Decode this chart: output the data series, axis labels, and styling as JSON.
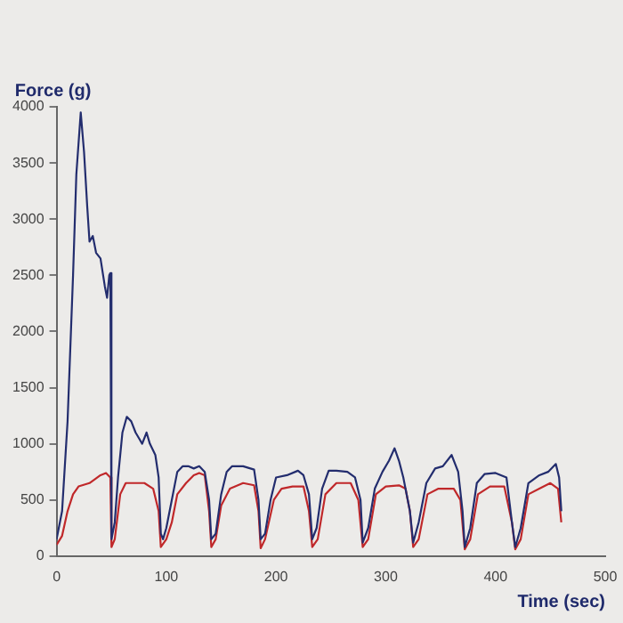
{
  "chart_data": {
    "type": "line",
    "xlabel": "Time (sec)",
    "ylabel": "Force (g)",
    "xlim": [
      0,
      500
    ],
    "xticks": [
      0,
      100,
      200,
      300,
      400,
      500
    ],
    "ylim": [
      0,
      4000
    ],
    "yticks": [
      0,
      500,
      1000,
      1500,
      2000,
      2500,
      3000,
      3500,
      4000
    ],
    "grid": false,
    "legend": false,
    "marker": "none",
    "line_style": "solid",
    "series": [
      {
        "color": "#232d6e",
        "x": [
          0,
          5,
          10,
          15,
          18,
          22,
          25,
          28,
          30,
          33,
          36,
          40,
          44,
          46,
          48,
          49,
          50,
          53,
          56,
          60,
          64,
          68,
          72,
          75,
          78,
          82,
          85,
          90,
          93,
          95,
          97,
          100,
          105,
          110,
          115,
          120,
          125,
          130,
          135,
          139,
          141,
          145,
          150,
          155,
          160,
          170,
          180,
          184,
          186,
          190,
          195,
          200,
          210,
          220,
          225,
          230,
          233,
          237,
          242,
          248,
          255,
          265,
          272,
          277,
          279,
          284,
          290,
          297,
          303,
          308,
          312,
          316,
          322,
          325,
          330,
          337,
          345,
          352,
          360,
          366,
          370,
          372,
          377,
          383,
          390,
          400,
          410,
          415,
          418,
          423,
          430,
          440,
          448,
          455,
          458,
          460
        ],
        "values": [
          150,
          400,
          1200,
          2500,
          3400,
          3950,
          3600,
          3100,
          2800,
          2850,
          2700,
          2650,
          2400,
          2300,
          2500,
          2520,
          150,
          300,
          700,
          1100,
          1240,
          1200,
          1100,
          1050,
          1000,
          1100,
          1000,
          900,
          700,
          200,
          150,
          250,
          500,
          750,
          800,
          800,
          780,
          800,
          750,
          500,
          150,
          200,
          550,
          750,
          800,
          800,
          770,
          500,
          150,
          200,
          500,
          700,
          720,
          760,
          720,
          550,
          150,
          250,
          600,
          760,
          760,
          750,
          700,
          500,
          120,
          250,
          600,
          750,
          850,
          960,
          850,
          700,
          400,
          120,
          300,
          650,
          780,
          800,
          900,
          750,
          400,
          80,
          250,
          650,
          730,
          740,
          700,
          300,
          80,
          250,
          650,
          720,
          750,
          820,
          700,
          400
        ]
      },
      {
        "color": "#c0282a",
        "x": [
          0,
          5,
          10,
          15,
          20,
          30,
          40,
          45,
          49,
          50,
          53,
          58,
          63,
          70,
          80,
          88,
          93,
          95,
          100,
          105,
          110,
          118,
          125,
          130,
          135,
          139,
          141,
          145,
          150,
          158,
          170,
          180,
          184,
          186,
          190,
          198,
          205,
          215,
          225,
          230,
          233,
          238,
          245,
          255,
          268,
          275,
          279,
          284,
          291,
          300,
          312,
          318,
          322,
          325,
          330,
          338,
          348,
          362,
          368,
          372,
          377,
          384,
          395,
          408,
          415,
          418,
          423,
          430,
          440,
          450,
          457,
          460
        ],
        "values": [
          100,
          180,
          400,
          550,
          620,
          650,
          720,
          740,
          700,
          80,
          150,
          550,
          650,
          650,
          650,
          600,
          400,
          80,
          150,
          300,
          550,
          650,
          720,
          740,
          720,
          400,
          80,
          150,
          450,
          600,
          650,
          630,
          400,
          70,
          150,
          500,
          600,
          620,
          620,
          400,
          80,
          150,
          550,
          650,
          650,
          500,
          80,
          150,
          550,
          620,
          630,
          600,
          400,
          80,
          150,
          550,
          600,
          600,
          500,
          60,
          150,
          550,
          620,
          620,
          300,
          60,
          150,
          550,
          600,
          650,
          600,
          300
        ]
      }
    ]
  }
}
